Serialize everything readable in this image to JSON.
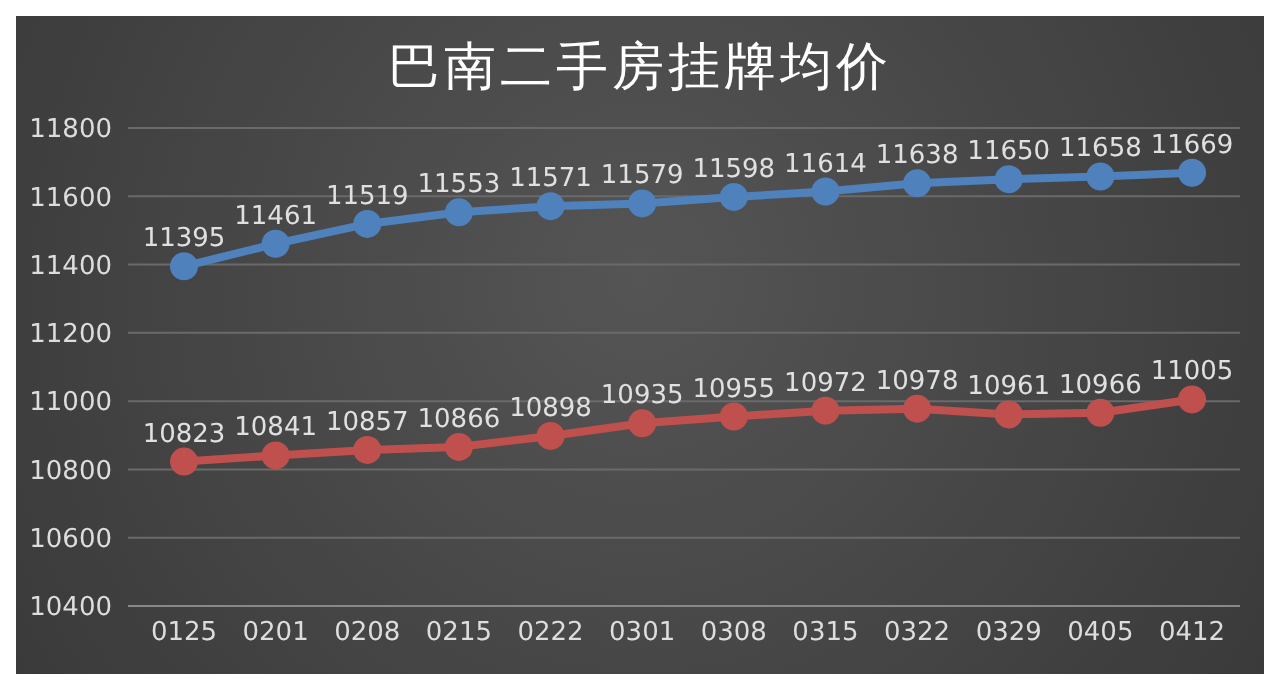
{
  "chart_data": {
    "type": "line",
    "title": "巴南二手房挂牌均价",
    "categories": [
      "0125",
      "0201",
      "0208",
      "0215",
      "0222",
      "0301",
      "0308",
      "0315",
      "0322",
      "0329",
      "0405",
      "0412"
    ],
    "series": [
      {
        "color": "#4f81bd",
        "values": [
          11395,
          11461,
          11519,
          11553,
          11571,
          11579,
          11598,
          11614,
          11638,
          11650,
          11658,
          11669
        ]
      },
      {
        "color": "#c0504d",
        "values": [
          10823,
          10841,
          10857,
          10866,
          10898,
          10935,
          10955,
          10972,
          10978,
          10961,
          10966,
          11005
        ]
      }
    ],
    "ylim": [
      10400,
      11800
    ],
    "yticks": [
      10400,
      10600,
      10800,
      11000,
      11200,
      11400,
      11600,
      11800
    ],
    "grid": "y",
    "marker": "circle",
    "line_style": "solid",
    "data_labels": true
  }
}
